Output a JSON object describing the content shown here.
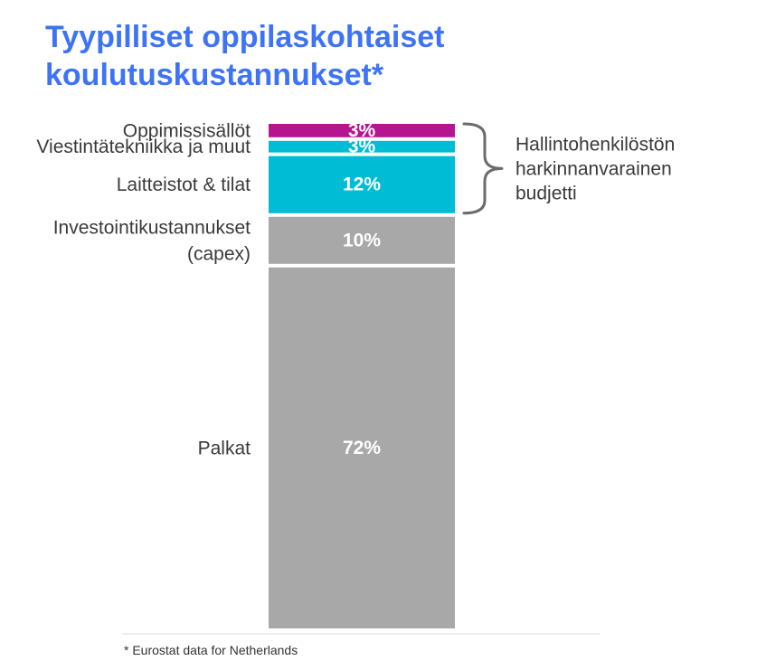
{
  "title": {
    "line1": "Tyypilliset oppilaskohtaiset",
    "line2": "koulutuskustannukset*"
  },
  "footnote": "* Eurostat data for Netherlands",
  "colors": {
    "title": "#3d73f5",
    "magenta": "#b5168f",
    "cyan": "#00bcd4",
    "gray": "#a8a8a8",
    "brace": "#6b6b6b"
  },
  "chart_data": {
    "type": "bar",
    "stacked": true,
    "segments": [
      {
        "category": "Palkat",
        "value": 72,
        "value_label": "72%",
        "color": "#a8a8a8"
      },
      {
        "category": "Investointikustannukset (capex)",
        "category_lines": [
          "Investointikustannukset",
          "(capex)"
        ],
        "value": 10,
        "value_label": "10%",
        "color": "#a8a8a8"
      },
      {
        "category": "Laitteistot & tilat",
        "value": 12,
        "value_label": "12%",
        "color": "#00bcd4"
      },
      {
        "category": "Viestintätekniikka ja muut",
        "value": 3,
        "value_label": "3%",
        "color": "#00bcd4"
      },
      {
        "category": "Oppimissisällöt",
        "value": 3,
        "value_label": "3%",
        "color": "#b5168f"
      }
    ],
    "bracket": {
      "covers": [
        "Laitteistot & tilat",
        "Viestintätekniikka ja muut",
        "Oppimissisällöt"
      ],
      "label_lines": [
        "Hallintohenkilöstön",
        "harkinnanvarainen",
        "budjetti"
      ]
    },
    "ylim": [
      0,
      100
    ],
    "grid": false,
    "legend": "none"
  }
}
